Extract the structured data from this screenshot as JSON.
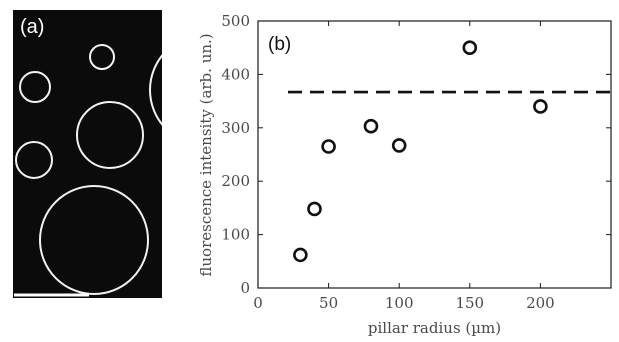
{
  "figure": {
    "panel_a_label": "(a)",
    "panel_b_label": "(b)",
    "micrograph": {
      "background_color": "#0b0b0b",
      "ring_color": "#f2f2f2",
      "scale_bar_color": "#ffffff"
    }
  },
  "chart_data": {
    "type": "scatter",
    "xlabel": "pillar radius (µm)",
    "ylabel": "fluorescence intensity (arb. un.)",
    "xlim": [
      0,
      250
    ],
    "ylim": [
      0,
      500
    ],
    "xticks": [
      0,
      50,
      100,
      150,
      200
    ],
    "yticks": [
      0,
      100,
      200,
      300,
      400,
      500
    ],
    "marker": "open-circle",
    "marker_color": "#111111",
    "series": [
      {
        "x": [
          30,
          40,
          50,
          80,
          100,
          150,
          200
        ],
        "y": [
          62,
          148,
          265,
          303,
          267,
          450,
          340
        ]
      }
    ],
    "reference_line": {
      "y": 367,
      "style": "dashed",
      "color": "#111111"
    },
    "grid": false,
    "legend": "none"
  }
}
